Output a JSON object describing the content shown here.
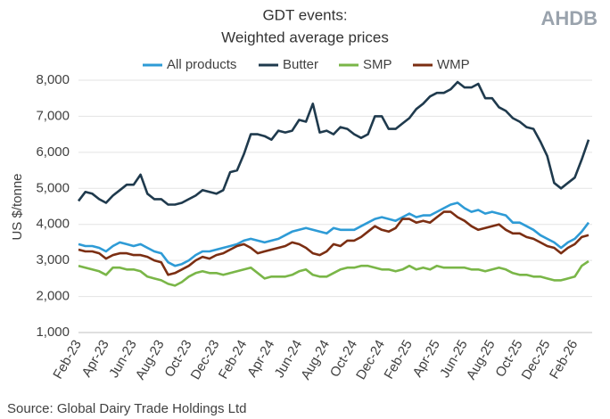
{
  "chart_data": {
    "type": "line",
    "title": [
      "GDT events:",
      "Weighted average prices"
    ],
    "logo": "AHDB",
    "y_label": "US $/tonne",
    "source": "Source: Global Dairy Trade Holdings Ltd",
    "categories": [
      "Feb-23",
      null,
      null,
      null,
      "Apr-23",
      null,
      null,
      null,
      "Jun-23",
      null,
      null,
      null,
      "Aug-23",
      null,
      null,
      null,
      "Oct-23",
      null,
      null,
      null,
      "Dec-23",
      null,
      null,
      null,
      "Feb-24",
      null,
      null,
      null,
      "Apr-24",
      null,
      null,
      null,
      "Jun-24",
      null,
      null,
      null,
      "Aug-24",
      null,
      null,
      null,
      "Oct-24",
      null,
      null,
      null,
      "Dec-24",
      null,
      null,
      null,
      "Feb-25",
      null,
      null,
      null,
      "Apr-25",
      null,
      null,
      null,
      "Jun-25",
      null,
      null,
      null,
      "Aug-25",
      null,
      null,
      null,
      "Oct-25",
      null,
      null,
      null,
      "Dec-25",
      null,
      null,
      null,
      "Feb-26",
      null,
      null
    ],
    "series": [
      {
        "name": "All products",
        "color": "#2e9bd6",
        "values": [
          3450,
          3400,
          3400,
          3350,
          3250,
          3400,
          3500,
          3450,
          3400,
          3450,
          3350,
          3250,
          3200,
          2950,
          2850,
          2900,
          3000,
          3150,
          3250,
          3250,
          3300,
          3350,
          3400,
          3450,
          3550,
          3600,
          3550,
          3500,
          3550,
          3600,
          3700,
          3800,
          3850,
          3900,
          3850,
          3800,
          3750,
          3900,
          3850,
          3850,
          3850,
          3950,
          4050,
          4150,
          4200,
          4150,
          4100,
          4200,
          4300,
          4200,
          4250,
          4250,
          4350,
          4450,
          4550,
          4600,
          4450,
          4350,
          4400,
          4300,
          4350,
          4300,
          4250,
          4050,
          4050,
          3950,
          3850,
          3700,
          3600,
          3500,
          3350,
          3500,
          3600,
          3800,
          4050
        ]
      },
      {
        "name": "Butter",
        "color": "#1f3a4d",
        "values": [
          4650,
          4900,
          4850,
          4700,
          4600,
          4800,
          4950,
          5100,
          5100,
          5380,
          4850,
          4700,
          4700,
          4550,
          4550,
          4600,
          4700,
          4800,
          4950,
          4900,
          4850,
          4950,
          5450,
          5500,
          5950,
          6500,
          6500,
          6450,
          6350,
          6600,
          6550,
          6600,
          6900,
          6850,
          7350,
          6550,
          6600,
          6500,
          6700,
          6650,
          6500,
          6400,
          6500,
          7000,
          7000,
          6650,
          6650,
          6800,
          6950,
          7200,
          7350,
          7550,
          7650,
          7650,
          7750,
          7950,
          7800,
          7800,
          7900,
          7500,
          7500,
          7250,
          7150,
          6950,
          6850,
          6700,
          6650,
          6300,
          5900,
          5150,
          5000,
          5150,
          5300,
          5800,
          6350
        ]
      },
      {
        "name": "SMP",
        "color": "#7ab648",
        "values": [
          2850,
          2800,
          2750,
          2700,
          2600,
          2800,
          2800,
          2750,
          2750,
          2700,
          2550,
          2500,
          2450,
          2350,
          2300,
          2400,
          2550,
          2650,
          2700,
          2650,
          2650,
          2600,
          2650,
          2700,
          2750,
          2800,
          2650,
          2500,
          2550,
          2550,
          2550,
          2600,
          2700,
          2750,
          2600,
          2550,
          2550,
          2650,
          2750,
          2800,
          2800,
          2850,
          2850,
          2800,
          2750,
          2750,
          2700,
          2750,
          2850,
          2750,
          2800,
          2750,
          2850,
          2800,
          2800,
          2800,
          2800,
          2750,
          2750,
          2700,
          2750,
          2800,
          2750,
          2650,
          2600,
          2600,
          2550,
          2550,
          2500,
          2450,
          2450,
          2500,
          2550,
          2850,
          2980
        ]
      },
      {
        "name": "WMP",
        "color": "#7b2e12",
        "values": [
          3300,
          3250,
          3250,
          3200,
          3050,
          3150,
          3200,
          3200,
          3150,
          3150,
          3100,
          3000,
          2950,
          2600,
          2650,
          2750,
          2850,
          3000,
          3100,
          3050,
          3150,
          3200,
          3300,
          3400,
          3450,
          3350,
          3200,
          3250,
          3300,
          3350,
          3400,
          3500,
          3450,
          3350,
          3200,
          3150,
          3250,
          3450,
          3400,
          3550,
          3550,
          3650,
          3800,
          3950,
          3850,
          3800,
          3900,
          4150,
          4150,
          4050,
          4100,
          4050,
          4200,
          4350,
          4350,
          4200,
          4100,
          3950,
          3850,
          3900,
          3950,
          4000,
          3850,
          3750,
          3750,
          3650,
          3600,
          3500,
          3400,
          3350,
          3200,
          3350,
          3450,
          3650,
          3700
        ]
      }
    ],
    "ylim": [
      1000,
      8000
    ],
    "yticks": [
      {
        "value": 1000,
        "label": "1,000"
      },
      {
        "value": 2000,
        "label": "2,000"
      },
      {
        "value": 3000,
        "label": "3,000"
      },
      {
        "value": 4000,
        "label": "4,000"
      },
      {
        "value": 5000,
        "label": "5,000"
      },
      {
        "value": 6000,
        "label": "6,000"
      },
      {
        "value": 7000,
        "label": "7,000"
      },
      {
        "value": 8000,
        "label": "8,000"
      }
    ],
    "grid": true
  }
}
